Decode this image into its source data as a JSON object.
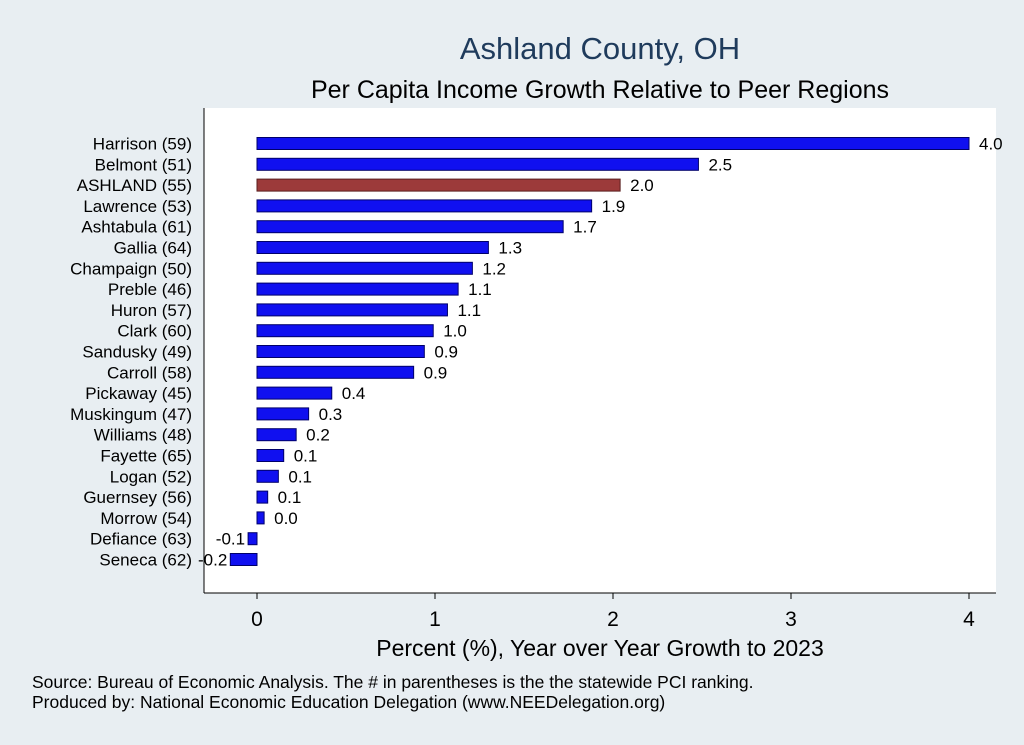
{
  "chart_data": {
    "type": "bar",
    "orientation": "horizontal",
    "title": "Ashland County, OH",
    "subtitle": "Per Capita Income Growth Relative to Peer Regions",
    "xlabel": "Percent (%), Year over Year Growth to 2023",
    "ylabel": "",
    "xlim": [
      -0.3,
      4.15
    ],
    "xticks": [
      0,
      1,
      2,
      3,
      4
    ],
    "grid": false,
    "categories": [
      "Harrison (59)",
      "Belmont (51)",
      "ASHLAND (55)",
      "Lawrence (53)",
      "Ashtabula (61)",
      "Gallia (64)",
      "Champaign (50)",
      "Preble (46)",
      "Huron (57)",
      "Clark (60)",
      "Sandusky (49)",
      "Carroll (58)",
      "Pickaway (45)",
      "Muskingum (47)",
      "Williams (48)",
      "Fayette (65)",
      "Logan (52)",
      "Guernsey (56)",
      "Morrow (54)",
      "Defiance (63)",
      "Seneca (62)"
    ],
    "values": [
      4.0,
      2.48,
      2.04,
      1.88,
      1.72,
      1.3,
      1.21,
      1.13,
      1.07,
      0.99,
      0.94,
      0.88,
      0.42,
      0.29,
      0.22,
      0.15,
      0.12,
      0.06,
      0.04,
      -0.05,
      -0.15
    ],
    "value_labels": [
      "4.0",
      "2.5",
      "2.0",
      "1.9",
      "1.7",
      "1.3",
      "1.2",
      "1.1",
      "1.1",
      "1.0",
      "0.9",
      "0.9",
      "0.4",
      "0.3",
      "0.2",
      "0.1",
      "0.1",
      "0.1",
      "0.0",
      "-0.1",
      "-0.2"
    ],
    "highlight": "ASHLAND (55)",
    "colors": {
      "bar": "#1010f0",
      "bar_edge": "#00006a",
      "highlight": "#9c3a3a",
      "highlight_edge": "#5a1e1e"
    }
  },
  "notes": {
    "source": "Source: Bureau of Economic Analysis. The # in parentheses is the the statewide PCI ranking.",
    "produced_by": "Produced by: National Economic Education Delegation (www.NEEDelegation.org)"
  },
  "colors": {
    "background": "#e8eef2",
    "plot_background": "#ffffff",
    "title": "#1f3b5c"
  }
}
